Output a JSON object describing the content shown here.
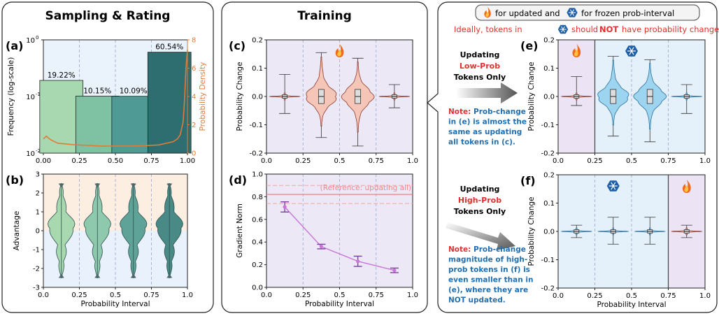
{
  "panels": {
    "left_title": "Sampling & Rating",
    "mid_title": "Training",
    "legend_box": {
      "updated_text": "for updated and",
      "frozen_text": "for frozen prob-interval"
    },
    "ideally": {
      "prefix": "Ideally, tokens in",
      "middle": "should",
      "emph": "NOT",
      "suffix": "have probability change"
    },
    "arrow_top": {
      "line1": "Updating",
      "line2": "Low-Prob",
      "line3": "Tokens Only"
    },
    "arrow_bottom": {
      "line1": "Updating",
      "line2": "High-Prob",
      "line3": "Tokens Only"
    },
    "note_top": {
      "label": "Note:",
      "lines": [
        "Prob-change",
        "in (e) is almost the",
        "same as updating",
        "all tokens in (c)."
      ]
    },
    "note_bottom": {
      "label": "Note:",
      "lines": [
        "Prob-change",
        "magnitude of high-",
        "prob tokens in (f) is",
        "even smaller than in",
        "(e), where they are",
        "NOT updated."
      ]
    }
  },
  "colors": {
    "orange": "#e07b39",
    "red": "#e03030",
    "blue_note": "#1f6fb2",
    "bar": [
      "#a8d8b0",
      "#7fc2a3",
      "#4f9a94",
      "#2f6e70"
    ],
    "violin_green": [
      "#a8d8b0",
      "#8fc9ad",
      "#5fa398",
      "#4a8a86"
    ],
    "violin_red": "#f5c6b8",
    "violin_blue": "#9dd4ef",
    "line_purple": "#c874d8"
  },
  "icons": {
    "updated": "flame-icon",
    "frozen": "snowflake-icon"
  },
  "chart_data": [
    {
      "id": "a",
      "type": "bar",
      "label": "(a)",
      "categories": [
        "0-0.25",
        "0.25-0.5",
        "0.5-0.75",
        "0.75-1"
      ],
      "x_centers": [
        0.125,
        0.375,
        0.625,
        0.875
      ],
      "values": [
        0.1922,
        0.1015,
        0.1009,
        0.6054
      ],
      "data_labels": [
        "19.22%",
        "10.15%",
        "10.09%",
        "60.54%"
      ],
      "ylabel": "Frequency (log-scale)",
      "yscale": "log",
      "ylim": [
        0.01,
        1
      ],
      "y_ticks": [
        "10",
        "10",
        "10"
      ],
      "y_tick_exp": [
        "-2",
        "-1",
        "0"
      ],
      "xlim": [
        0,
        1
      ],
      "x_ticks": [
        "0.00",
        "0.25",
        "0.50",
        "0.75",
        "1.00"
      ],
      "y2label": "Probability Density",
      "y2lim": [
        0,
        8
      ],
      "y2_ticks": [
        "0",
        "2",
        "4",
        "6",
        "8"
      ],
      "density_x": [
        0,
        0.02,
        0.05,
        0.1,
        0.2,
        0.3,
        0.4,
        0.5,
        0.6,
        0.7,
        0.8,
        0.9,
        0.93,
        0.95,
        0.97,
        0.98,
        0.99,
        1.0
      ],
      "density_y": [
        1.0,
        1.2,
        0.95,
        0.7,
        0.6,
        0.55,
        0.5,
        0.5,
        0.5,
        0.52,
        0.58,
        0.8,
        1.0,
        1.3,
        2.2,
        3.8,
        6.0,
        7.3
      ]
    },
    {
      "id": "b",
      "type": "violin",
      "label": "(b)",
      "positions": [
        0.125,
        0.375,
        0.625,
        0.875
      ],
      "ylabel": "Advantage",
      "xlabel": "Probability Interval",
      "ylim": [
        -3,
        3
      ],
      "y_ticks": [
        "-3",
        "-2",
        "-1",
        "0",
        "1",
        "2",
        "3"
      ],
      "xlim": [
        0,
        1
      ],
      "x_ticks": [
        "0.0",
        "0.25",
        "0.5",
        "0.75",
        "1.0"
      ],
      "range": [
        -2.5,
        2.5
      ]
    },
    {
      "id": "c",
      "type": "violin",
      "label": "(c)",
      "positions": [
        0.125,
        0.375,
        0.625,
        0.875
      ],
      "ylabel": "Probability Change",
      "ylim": [
        -0.2,
        0.2
      ],
      "y_ticks": [
        "-0.2",
        "-0.1",
        "0.0",
        "0.1",
        "0.2"
      ],
      "xlim": [
        0,
        1
      ],
      "x_ticks": [
        "0.0",
        "0.25",
        "0.5",
        "0.75",
        "1.0"
      ],
      "whisker_low": [
        -0.06,
        -0.145,
        -0.175,
        -0.04
      ],
      "whisker_high": [
        0.078,
        0.155,
        0.135,
        0.042
      ],
      "updated": [
        true,
        true,
        true,
        true
      ]
    },
    {
      "id": "d",
      "type": "line",
      "label": "(d)",
      "x": [
        0.125,
        0.375,
        0.625,
        0.875
      ],
      "y": [
        0.71,
        0.36,
        0.23,
        0.15
      ],
      "yerr": [
        0.045,
        0.02,
        0.045,
        0.02
      ],
      "ylabel": "Gradient Norm",
      "xlabel": "Probability Interval",
      "ylim": [
        0,
        1
      ],
      "y_ticks": [
        "0.0",
        "0.2",
        "0.4",
        "0.6",
        "0.8",
        "1.0"
      ],
      "xlim": [
        0,
        1
      ],
      "x_ticks": [
        "0.0",
        "0.25",
        "0.5",
        "0.75",
        "1.0"
      ],
      "reference_y": 0.82,
      "reference_band": [
        0.74,
        0.9
      ],
      "reference_label": "(Reference: updating all)"
    },
    {
      "id": "e",
      "type": "violin",
      "label": "(e)",
      "positions": [
        0.125,
        0.375,
        0.625,
        0.875
      ],
      "ylabel": "Probability Change",
      "ylim": [
        -0.2,
        0.2
      ],
      "y_ticks": [
        "-0.2",
        "-0.1",
        "0.0",
        "0.1",
        "0.2"
      ],
      "xlim": [
        0,
        1
      ],
      "x_ticks": [
        "0.0",
        "0.25",
        "0.5",
        "0.75",
        "1.0"
      ],
      "whisker_low": [
        -0.032,
        -0.14,
        -0.16,
        -0.06
      ],
      "whisker_high": [
        0.07,
        0.142,
        0.13,
        0.042
      ],
      "updated": [
        true,
        false,
        false,
        false
      ]
    },
    {
      "id": "f",
      "type": "violin",
      "label": "(f)",
      "positions": [
        0.125,
        0.375,
        0.625,
        0.875
      ],
      "ylabel": "Probability Change",
      "xlabel": "Probability Interval",
      "ylim": [
        -0.2,
        0.2
      ],
      "y_ticks": [
        "-0.2",
        "-0.1",
        "0.0",
        "0.1",
        "0.2"
      ],
      "xlim": [
        0,
        1
      ],
      "x_ticks": [
        "0.0",
        "0.25",
        "0.5",
        "0.75",
        "1.0"
      ],
      "whisker_low": [
        -0.022,
        -0.045,
        -0.045,
        -0.022
      ],
      "whisker_high": [
        0.022,
        0.05,
        0.05,
        0.022
      ],
      "updated": [
        false,
        false,
        false,
        true
      ]
    }
  ]
}
